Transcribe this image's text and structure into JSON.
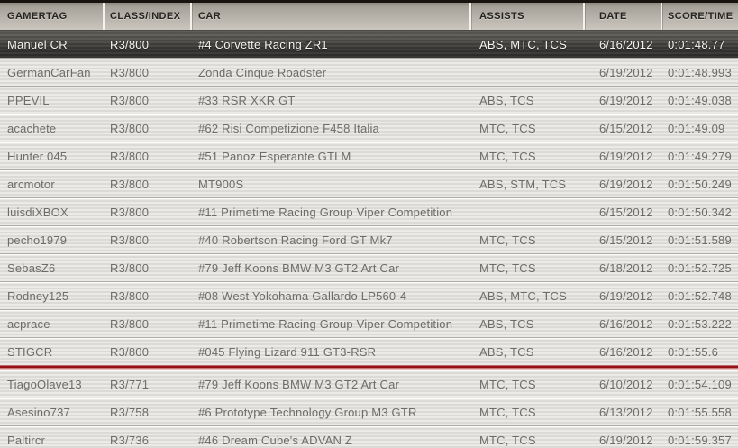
{
  "colors": {
    "header_background": "#b3aea6",
    "header_top_strip": "#17140f",
    "header_text": "#26241f",
    "row_light_stripe": "#eceae6",
    "row_dark_stripe": "#dcdad6",
    "row_text": "#6e6c68",
    "selected_row_top": "#57554f",
    "selected_row_bottom": "#2d2c2a",
    "selected_row_text": "#f6f5f3",
    "red_divider": "#9c1217"
  },
  "table": {
    "columns": [
      {
        "key": "gamertag",
        "label": "GAMERTAG"
      },
      {
        "key": "class_index",
        "label": "CLASS/INDEX"
      },
      {
        "key": "car",
        "label": "CAR"
      },
      {
        "key": "assists",
        "label": "ASSISTS"
      },
      {
        "key": "date",
        "label": "DATE"
      },
      {
        "key": "score",
        "label": "SCORE/TIME"
      }
    ],
    "red_divider_after_row_index": 11,
    "rows": [
      {
        "gamertag": "Manuel CR",
        "class_index": "R3/800",
        "car": "#4 Corvette Racing ZR1",
        "assists": "ABS, MTC, TCS",
        "date": "6/16/2012",
        "score": "0:01:48.77",
        "highlighted": true
      },
      {
        "gamertag": "GermanCarFan",
        "class_index": "R3/800",
        "car": "Zonda Cinque Roadster",
        "assists": "",
        "date": "6/19/2012",
        "score": "0:01:48.993",
        "highlighted": false
      },
      {
        "gamertag": "PPEVIL",
        "class_index": "R3/800",
        "car": "#33 RSR XKR GT",
        "assists": "ABS, TCS",
        "date": "6/19/2012",
        "score": "0:01:49.038",
        "highlighted": false
      },
      {
        "gamertag": "acachete",
        "class_index": "R3/800",
        "car": "#62 Risi Competizione F458 Italia",
        "assists": "MTC, TCS",
        "date": "6/15/2012",
        "score": "0:01:49.09",
        "highlighted": false
      },
      {
        "gamertag": "Hunter 045",
        "class_index": "R3/800",
        "car": "#51 Panoz Esperante GTLM",
        "assists": "MTC, TCS",
        "date": "6/19/2012",
        "score": "0:01:49.279",
        "highlighted": false
      },
      {
        "gamertag": "arcmotor",
        "class_index": "R3/800",
        "car": "MT900S",
        "assists": "ABS, STM, TCS",
        "date": "6/19/2012",
        "score": "0:01:50.249",
        "highlighted": false
      },
      {
        "gamertag": "luisdiXBOX",
        "class_index": "R3/800",
        "car": "#11 Primetime Racing Group Viper Competition",
        "assists": "",
        "date": "6/15/2012",
        "score": "0:01:50.342",
        "highlighted": false
      },
      {
        "gamertag": "pecho1979",
        "class_index": "R3/800",
        "car": "#40 Robertson Racing Ford GT Mk7",
        "assists": "MTC, TCS",
        "date": "6/15/2012",
        "score": "0:01:51.589",
        "highlighted": false
      },
      {
        "gamertag": "SebasZ6",
        "class_index": "R3/800",
        "car": "#79 Jeff Koons BMW M3 GT2 Art Car",
        "assists": "MTC, TCS",
        "date": "6/18/2012",
        "score": "0:01:52.725",
        "highlighted": false
      },
      {
        "gamertag": "Rodney125",
        "class_index": "R3/800",
        "car": "#08 West Yokohama Gallardo LP560-4",
        "assists": "ABS, MTC, TCS",
        "date": "6/19/2012",
        "score": "0:01:52.748",
        "highlighted": false
      },
      {
        "gamertag": "acprace",
        "class_index": "R3/800",
        "car": "#11 Primetime Racing Group Viper Competition",
        "assists": "ABS, TCS",
        "date": "6/16/2012",
        "score": "0:01:53.222",
        "highlighted": false
      },
      {
        "gamertag": "STIGCR",
        "class_index": "R3/800",
        "car": "#045 Flying Lizard 911 GT3-RSR",
        "assists": "ABS, TCS",
        "date": "6/16/2012",
        "score": "0:01:55.6",
        "highlighted": false
      },
      {
        "gamertag": "TiagoOlave13",
        "class_index": "R3/771",
        "car": "#79 Jeff Koons BMW M3 GT2 Art Car",
        "assists": "MTC, TCS",
        "date": "6/10/2012",
        "score": "0:01:54.109",
        "highlighted": false
      },
      {
        "gamertag": "Asesino737",
        "class_index": "R3/758",
        "car": "#6 Prototype Technology Group M3 GTR",
        "assists": "MTC, TCS",
        "date": "6/13/2012",
        "score": "0:01:55.558",
        "highlighted": false
      },
      {
        "gamertag": "Paltircr",
        "class_index": "R3/736",
        "car": "#46 Dream Cube's ADVAN Z",
        "assists": "MTC, TCS",
        "date": "6/19/2012",
        "score": "0:01:59.357",
        "highlighted": false
      }
    ]
  }
}
